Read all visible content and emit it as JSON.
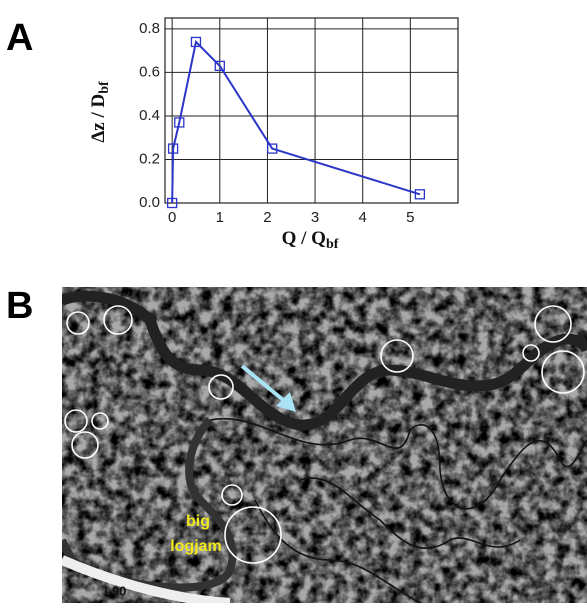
{
  "panel_labels": [
    "A",
    "B"
  ],
  "chart_data": {
    "type": "line",
    "xlabel": "Q / Q",
    "xlabel_sub": "bf",
    "ylabel": "Δz / D",
    "ylabel_sub": "bf",
    "x": [
      0,
      0.02,
      0.15,
      0.5,
      1.0,
      2.1,
      5.2
    ],
    "series": [
      {
        "color": "#2b35c8",
        "values": [
          0,
          0.25,
          0.37,
          0.74,
          0.63,
          0.25,
          0.04
        ]
      }
    ],
    "xlim": [
      -0.15,
      6
    ],
    "xticks": [
      0,
      1,
      2,
      3,
      4,
      5
    ],
    "ylim": [
      0,
      0.85
    ],
    "yticks": [
      {
        "value": 0,
        "label": "0.0"
      },
      0.2,
      0.4,
      0.6,
      0.8
    ],
    "grid": true
  },
  "photo_labels": {
    "logjam": [
      "big",
      "logjam"
    ],
    "road": "I-90"
  }
}
